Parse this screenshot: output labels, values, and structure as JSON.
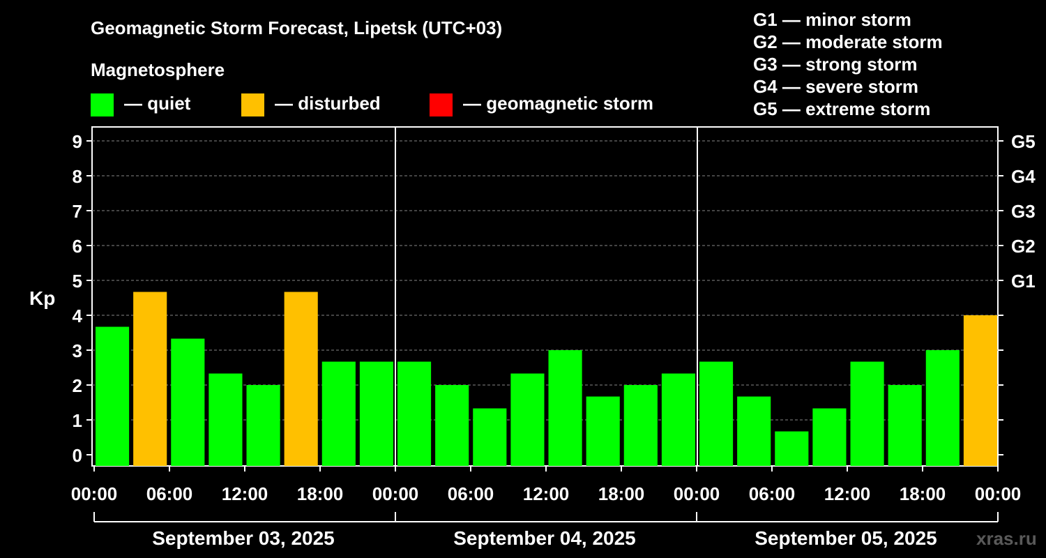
{
  "chart_data": {
    "type": "bar",
    "title": "Geomagnetic Storm Forecast, Lipetsk (UTC+03)",
    "legend_title": "Magnetosphere",
    "legend": [
      {
        "label": "— quiet",
        "color": "#00ff00"
      },
      {
        "label": "— disturbed",
        "color": "#ffc000"
      },
      {
        "label": "— geomagnetic storm",
        "color": "#ff0000"
      }
    ],
    "storm_scale": [
      "G1 — minor storm",
      "G2 — moderate storm",
      "G3 — strong storm",
      "G4 — severe storm",
      "G5 — extreme storm"
    ],
    "ylabel": "Kp",
    "ylim": [
      0,
      9
    ],
    "y_ticks": [
      "0",
      "1",
      "2",
      "3",
      "4",
      "5",
      "6",
      "7",
      "8",
      "9"
    ],
    "g_ticks": [
      {
        "label": "G1",
        "kp": 5
      },
      {
        "label": "G2",
        "kp": 6
      },
      {
        "label": "G3",
        "kp": 7
      },
      {
        "label": "G4",
        "kp": 8
      },
      {
        "label": "G5",
        "kp": 9
      }
    ],
    "grid": true,
    "x_ticks": [
      "00:00",
      "06:00",
      "12:00",
      "18:00",
      "00:00",
      "06:00",
      "12:00",
      "18:00",
      "00:00",
      "06:00",
      "12:00",
      "18:00",
      "00:00"
    ],
    "days": [
      "September 03, 2025",
      "September 04, 2025",
      "September 05, 2025"
    ],
    "values": [
      3.67,
      4.67,
      3.33,
      2.33,
      2.0,
      4.67,
      2.67,
      2.67,
      2.67,
      2.0,
      1.33,
      2.33,
      3.0,
      1.67,
      2.0,
      2.33,
      2.67,
      1.67,
      0.67,
      1.33,
      2.67,
      2.0,
      3.0,
      4.0
    ],
    "levels": [
      "quiet",
      "disturbed",
      "quiet",
      "quiet",
      "quiet",
      "disturbed",
      "quiet",
      "quiet",
      "quiet",
      "quiet",
      "quiet",
      "quiet",
      "quiet",
      "quiet",
      "quiet",
      "quiet",
      "quiet",
      "quiet",
      "quiet",
      "quiet",
      "quiet",
      "quiet",
      "quiet",
      "disturbed"
    ],
    "colors": {
      "quiet": "#00ff00",
      "disturbed": "#ffc000",
      "storm": "#ff0000"
    }
  },
  "watermark": "xras.ru"
}
